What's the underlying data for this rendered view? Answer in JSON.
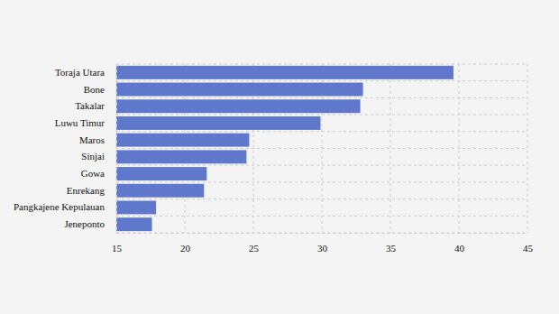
{
  "chart_data": {
    "type": "bar",
    "orientation": "horizontal",
    "categories": [
      "Toraja Utara",
      "Bone",
      "Takalar",
      "Luwu Timur",
      "Maros",
      "Sinjai",
      "Gowa",
      "Enrekang",
      "Pangkajene Kepulauan",
      "Jeneponto"
    ],
    "values": [
      39.6,
      33.0,
      32.8,
      29.9,
      24.7,
      24.5,
      21.6,
      21.4,
      17.9,
      17.6
    ],
    "color": "#5f78cc",
    "xlim": [
      15,
      45
    ],
    "xticks": [
      15,
      20,
      25,
      30,
      35,
      40,
      45
    ],
    "grid": true
  }
}
